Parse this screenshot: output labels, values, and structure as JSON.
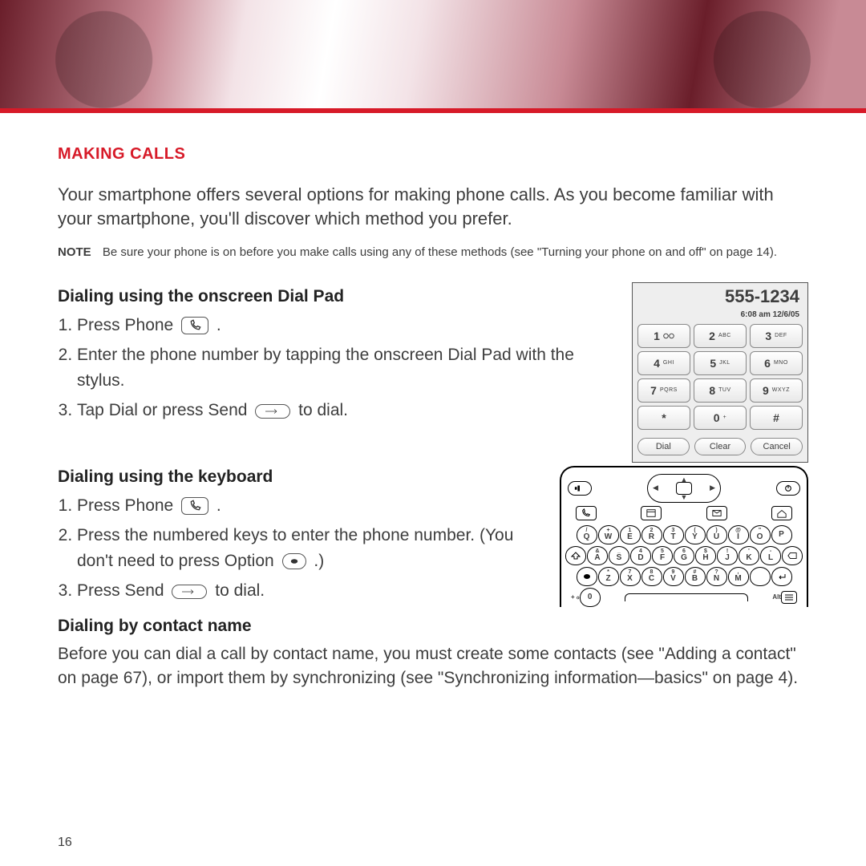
{
  "colors": {
    "accent": "#d71a28",
    "text": "#3d3d3d",
    "redbar": "#d71a28"
  },
  "page_number": "16",
  "section_title": "MAKING CALLS",
  "intro": "Your smartphone offers several options for making phone calls. As you become familiar with your smartphone, you'll discover which method you prefer.",
  "note_label": "NOTE",
  "note_text": "Be sure your phone is on before you make calls using any of these methods (see \"Turning your phone on and off\" on page 14).",
  "sub1": "Dialing using the onscreen Dial Pad",
  "s1_1a": "Press Phone ",
  "s1_1b": ".",
  "s1_2": "Enter the phone number by tapping the onscreen Dial Pad with the stylus.",
  "s1_3a": "Tap Dial or press Send ",
  "s1_3b": " to dial.",
  "sub2": "Dialing using the keyboard",
  "s2_1a": "Press Phone ",
  "s2_1b": ".",
  "s2_2a": "Press the numbered keys to enter the phone number. (You don't need to press Option ",
  "s2_2b": ".)",
  "s2_3a": "Press Send ",
  "s2_3b": " to dial.",
  "sub3": "Dialing by contact name",
  "para3": "Before you can dial a call by contact name, you must create some contacts (see \"Adding a contact\" on page 67), or import them by synchronizing (see \"Synchronizing information—basics\" on page 4).",
  "dialpad": {
    "display": "555-1234",
    "time": "6:08 am  12/6/05",
    "keys": [
      {
        "n": "1",
        "t": ""
      },
      {
        "n": "2",
        "t": "ABC"
      },
      {
        "n": "3",
        "t": "DEF"
      },
      {
        "n": "4",
        "t": "GHI"
      },
      {
        "n": "5",
        "t": "JKL"
      },
      {
        "n": "6",
        "t": "MNO"
      },
      {
        "n": "7",
        "t": "PQRS"
      },
      {
        "n": "8",
        "t": "TUV"
      },
      {
        "n": "9",
        "t": "WXYZ"
      },
      {
        "n": "*",
        "t": ""
      },
      {
        "n": "0",
        "t": "+"
      },
      {
        "n": "#",
        "t": ""
      }
    ],
    "actions": [
      "Dial",
      "Clear",
      "Cancel"
    ]
  },
  "keyboard": {
    "row1": [
      {
        "alt": "/",
        "main": "Q"
      },
      {
        "alt": "+",
        "main": "W"
      },
      {
        "alt": "1",
        "main": "E"
      },
      {
        "alt": "2",
        "main": "R"
      },
      {
        "alt": "3",
        "main": "T"
      },
      {
        "alt": "(",
        "main": "Y"
      },
      {
        "alt": ")",
        "main": "U"
      },
      {
        "alt": "@",
        "main": "I"
      },
      {
        "alt": "\"",
        "main": "O"
      },
      {
        "alt": "",
        "main": "P"
      }
    ],
    "row2": [
      {
        "alt": "&",
        "main": "A"
      },
      {
        "alt": "_",
        "main": "S"
      },
      {
        "alt": "4",
        "main": "D"
      },
      {
        "alt": "5",
        "main": "F"
      },
      {
        "alt": "6",
        "main": "G"
      },
      {
        "alt": "$",
        "main": "H"
      },
      {
        "alt": "!",
        "main": "J"
      },
      {
        "alt": "'",
        "main": "K"
      },
      {
        "alt": "-",
        "main": "L"
      }
    ],
    "row3": [
      {
        "alt": "*",
        "main": "Z"
      },
      {
        "alt": "7",
        "main": "X"
      },
      {
        "alt": "8",
        "main": "C"
      },
      {
        "alt": "9",
        "main": "V"
      },
      {
        "alt": "#",
        "main": "B"
      },
      {
        "alt": "?",
        "main": "N"
      },
      {
        "alt": ",",
        "main": "M"
      },
      {
        "alt": "",
        ":main": "."
      }
    ],
    "bottom_left": "+ ℴ",
    "zero": "0",
    "alt_label": "Alt"
  }
}
